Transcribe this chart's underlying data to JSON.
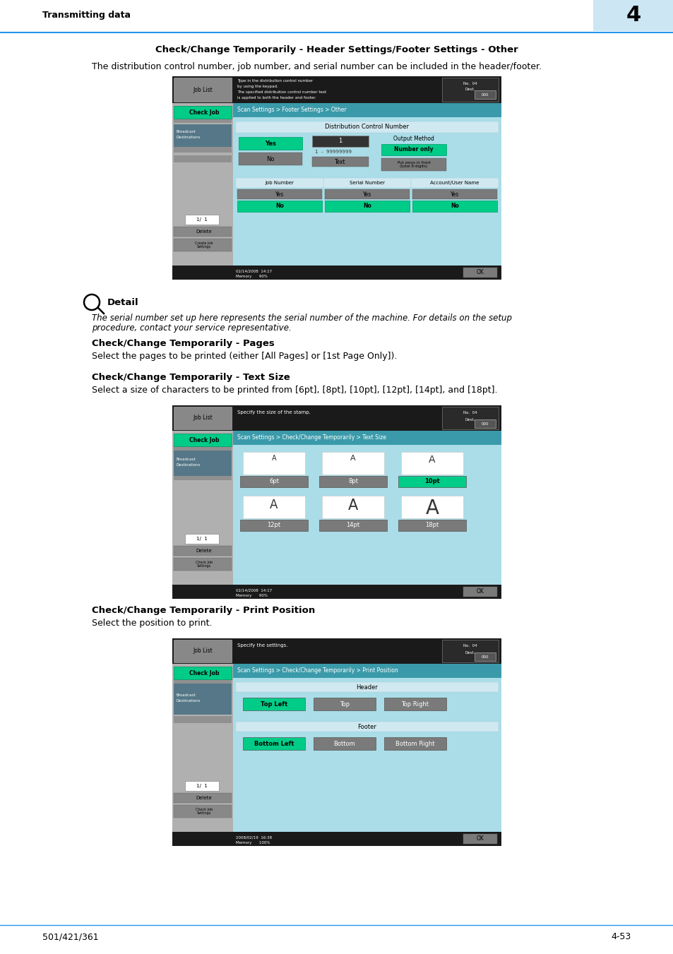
{
  "page_bg": "#ffffff",
  "header_text": "Transmitting data",
  "header_chapter": "4",
  "header_chapter_bg": "#cce6f4",
  "header_line_color": "#2196f3",
  "footer_left": "501/421/361",
  "footer_right": "4-53",
  "footer_line_color": "#2196f3",
  "section1_title": "Check/Change Temporarily - Header Settings/Footer Settings - Other",
  "section1_body": "The distribution control number, job number, and serial number can be included in the header/footer.",
  "detail_label": "Detail",
  "detail_body1": "The serial number set up here represents the serial number of the machine. For details on the setup",
  "detail_body2": "procedure, contact your service representative.",
  "section2_title": "Check/Change Temporarily - Pages",
  "section2_body": "Select the pages to be printed (either [All Pages] or [1st Page Only]).",
  "section3_title": "Check/Change Temporarily - Text Size",
  "section3_body": "Select a size of characters to be printed from [6pt], [8pt], [10pt], [12pt], [14pt], and [18pt].",
  "section4_title": "Check/Change Temporarily - Print Position",
  "section4_body": "Select the position to print.",
  "green": "#00cc88",
  "dark_green": "#009966",
  "gray_btn": "#7a7a7a",
  "teal_bar": "#3a9aaa",
  "screen_bg": "#aadde8",
  "sidebar_bg": "#b0b0b0",
  "sidebar_stripe": "#909090",
  "black_bar": "#1a1a1a",
  "dest_box": "#2a2a2a",
  "light_blue": "#d0e8f0",
  "broadcast_bg": "#557788"
}
